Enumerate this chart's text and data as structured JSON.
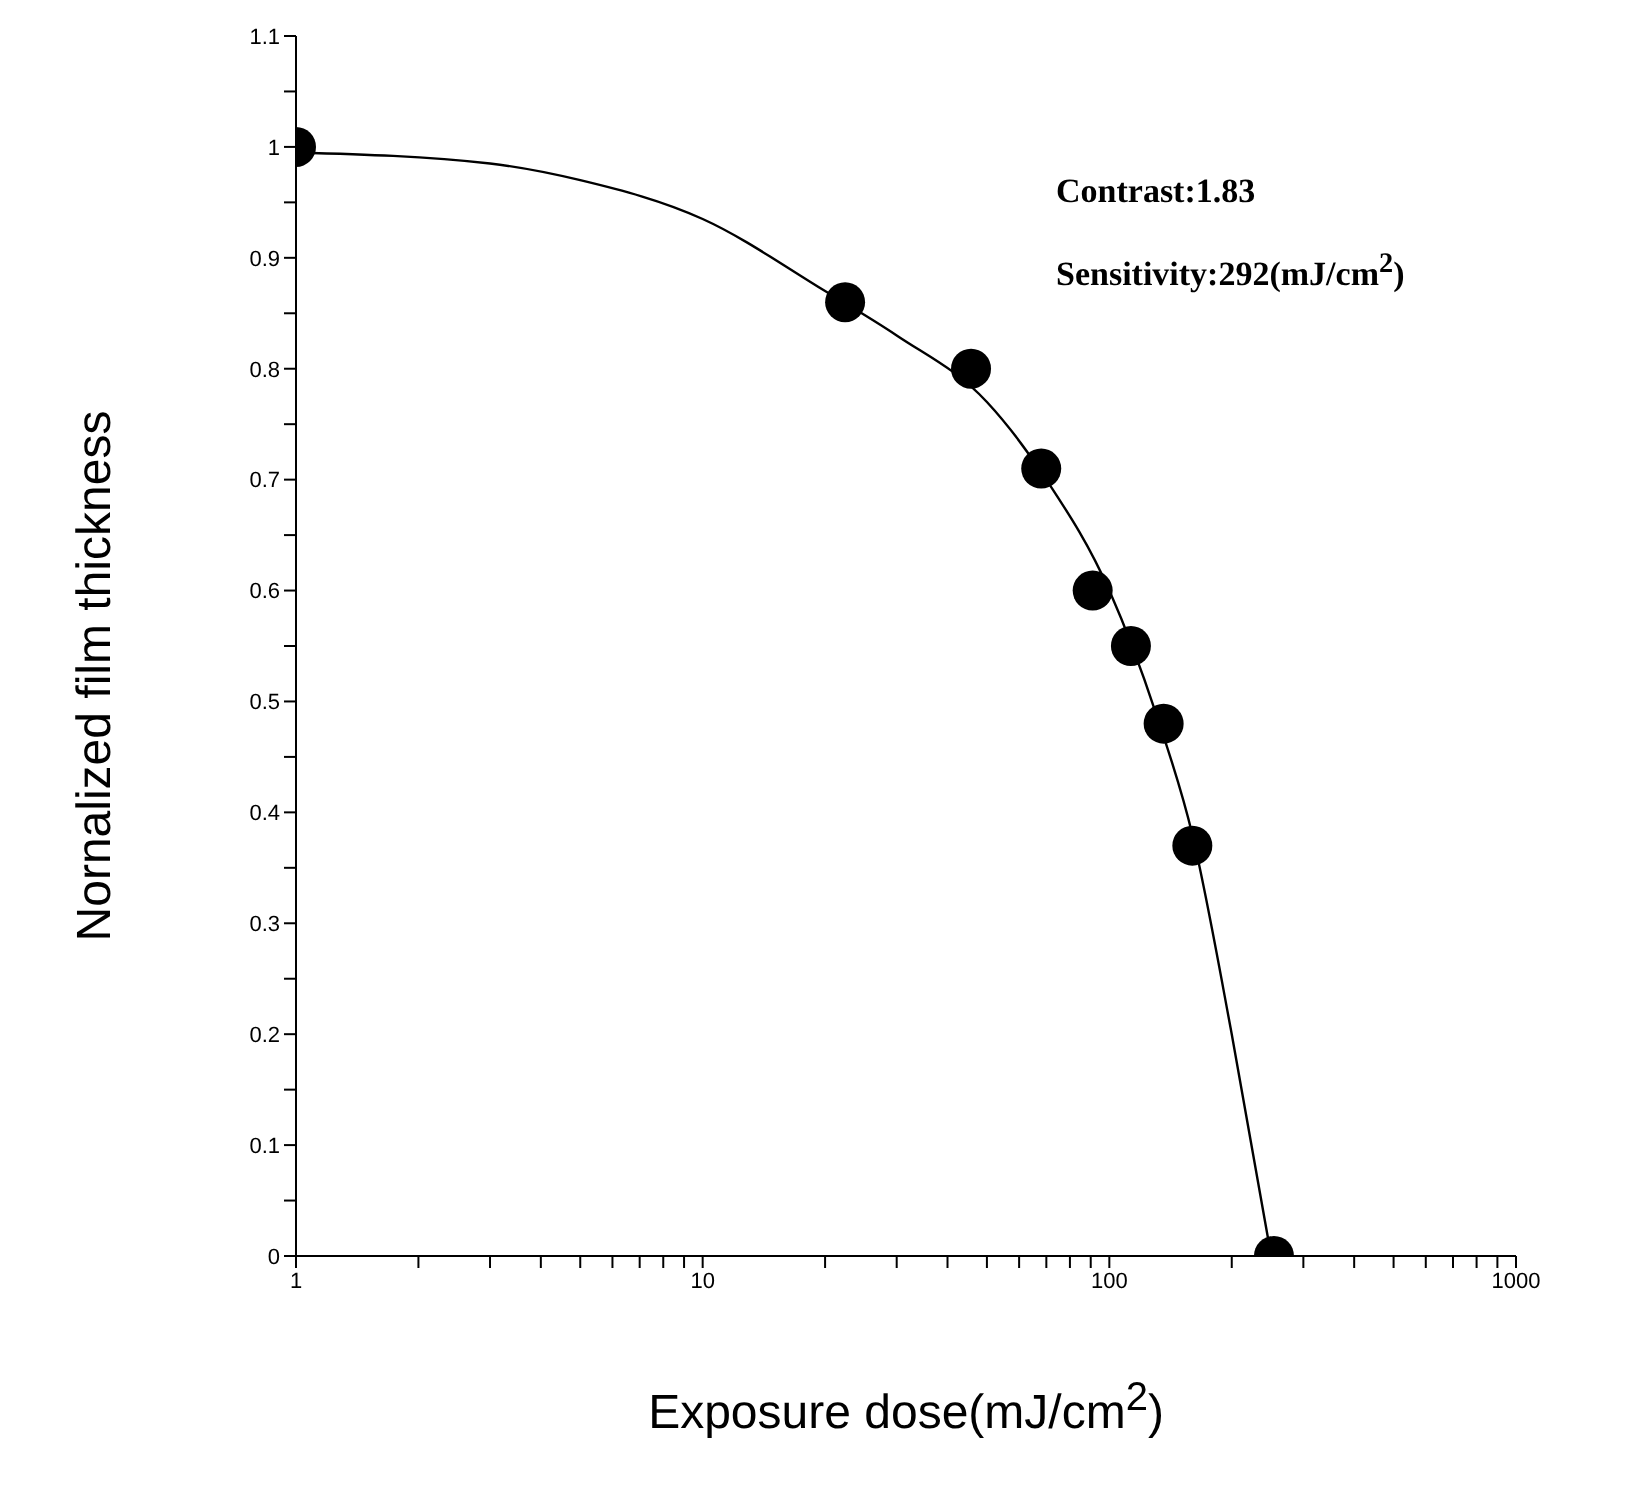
{
  "chart_data": {
    "type": "scatter",
    "xlabel": "Exposure dose(mJ/cm$^{2}$)",
    "ylabel": "Nornalized film thickness",
    "log": "x",
    "xlim": [
      1,
      1000
    ],
    "ylim": [
      0,
      1.1
    ],
    "xticks": [
      1,
      {
        "value": 2,
        "label": null
      },
      {
        "value": 3,
        "label": null
      },
      {
        "value": 4,
        "label": null
      },
      {
        "value": 5,
        "label": null
      },
      {
        "value": 6,
        "label": null
      },
      {
        "value": 7,
        "label": null
      },
      {
        "value": 8,
        "label": null
      },
      {
        "value": 9,
        "label": null
      },
      10,
      {
        "value": 20,
        "label": null
      },
      {
        "value": 30,
        "label": null
      },
      {
        "value": 40,
        "label": null
      },
      {
        "value": 50,
        "label": null
      },
      {
        "value": 60,
        "label": null
      },
      {
        "value": 70,
        "label": null
      },
      {
        "value": 80,
        "label": null
      },
      {
        "value": 90,
        "label": null
      },
      100,
      {
        "value": 200,
        "label": null
      },
      {
        "value": 300,
        "label": null
      },
      {
        "value": 400,
        "label": null
      },
      {
        "value": 500,
        "label": null
      },
      {
        "value": 600,
        "label": null
      },
      {
        "value": 700,
        "label": null
      },
      {
        "value": 800,
        "label": null
      },
      {
        "value": 900,
        "label": null
      },
      1000
    ],
    "yticks": [
      0,
      {
        "value": 0.05,
        "label": null
      },
      0.1,
      {
        "value": 0.15,
        "label": null
      },
      0.2,
      {
        "value": 0.25,
        "label": null
      },
      0.3,
      {
        "value": 0.35,
        "label": null
      },
      0.4,
      {
        "value": 0.45,
        "label": null
      },
      0.5,
      {
        "value": 0.55,
        "label": null
      },
      0.6,
      {
        "value": 0.65,
        "label": null
      },
      0.7,
      {
        "value": 0.75,
        "label": null
      },
      0.8,
      {
        "value": 0.85,
        "label": null
      },
      0.9,
      {
        "value": 0.95,
        "label": null
      },
      1,
      {
        "value": 1.05,
        "label": null
      },
      1.1
    ],
    "grid": false,
    "line_style": "solid",
    "series": [
      {
        "type": "line",
        "color": "#000000",
        "x": [
          1,
          3,
          5,
          10,
          20,
          30,
          50,
          70,
          100,
          130,
          160,
          200,
          250
        ],
        "values": [
          0.995,
          0.985,
          0.97,
          0.935,
          0.87,
          0.83,
          0.77,
          0.7,
          0.6,
          0.49,
          0.38,
          0.2,
          0.0
        ]
      },
      {
        "marker": "circle",
        "color": "#000000",
        "x": [
          1,
          22.4,
          45.7,
          68,
          91,
          113,
          136,
          160,
          254
        ],
        "values": [
          1.0,
          0.86,
          0.8,
          0.71,
          0.6,
          0.55,
          0.48,
          0.37,
          0.0
        ]
      }
    ],
    "annotations": [
      "Contrast:1.83",
      "Sensitivity:292(mJ/cm$^{2}$)"
    ]
  }
}
